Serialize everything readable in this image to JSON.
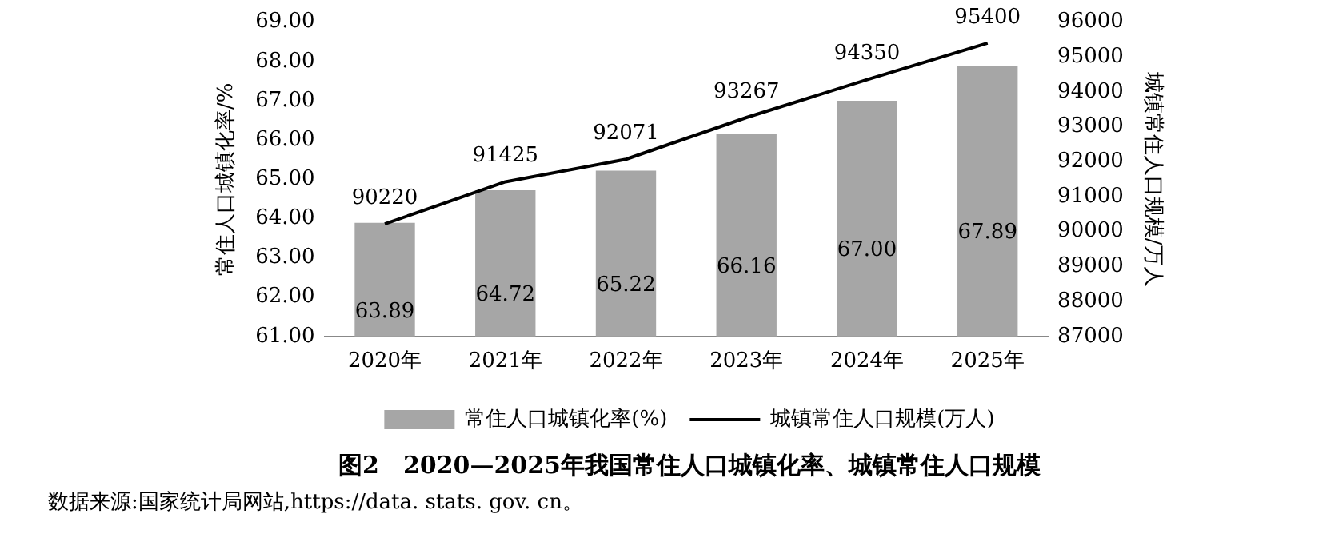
{
  "chart_data": {
    "type": "bar",
    "title": "图2　2020—2025年我国常住人口城镇化率、城镇常住人口规模",
    "categories": [
      "2020年",
      "2021年",
      "2022年",
      "2023年",
      "2024年",
      "2025年"
    ],
    "series": [
      {
        "name": "常住人口城镇化率(%)",
        "color": "#a6a6a6",
        "values": [
          63.89,
          64.72,
          65.22,
          66.16,
          67.0,
          67.89
        ],
        "value_labels": [
          "63.89",
          "64.72",
          "65.22",
          "66.16",
          "67.00",
          "67.89"
        ]
      },
      {
        "name": "城镇常住人口规模(万人)",
        "type": "line",
        "axis": "y2",
        "color": "#000000",
        "values": [
          90220,
          91425,
          92071,
          93267,
          94350,
          95400
        ],
        "value_labels": [
          "90220",
          "91425",
          "92071",
          "93267",
          "94350",
          "95400"
        ]
      }
    ],
    "ylabel": "常住人口城镇化率/%",
    "y2label": "城镇常住人口规模/万人",
    "ylim": [
      61,
      69
    ],
    "yticks": [
      {
        "value": 61,
        "label": "61.00"
      },
      {
        "value": 62,
        "label": "62.00"
      },
      {
        "value": 63,
        "label": "63.00"
      },
      {
        "value": 64,
        "label": "64.00"
      },
      {
        "value": 65,
        "label": "65.00"
      },
      {
        "value": 66,
        "label": "66.00"
      },
      {
        "value": 67,
        "label": "67.00"
      },
      {
        "value": 68,
        "label": "68.00"
      },
      {
        "value": 69,
        "label": "69.00"
      }
    ],
    "y2lim": [
      87000,
      96000
    ],
    "y2ticks": [
      87000,
      88000,
      89000,
      90000,
      91000,
      92000,
      93000,
      94000,
      95000,
      96000
    ],
    "grid": false,
    "legend": "bottom",
    "marker": "none",
    "annotations": [
      "数据来源:国家统计局网站,https://data. stats. gov. cn。"
    ]
  }
}
